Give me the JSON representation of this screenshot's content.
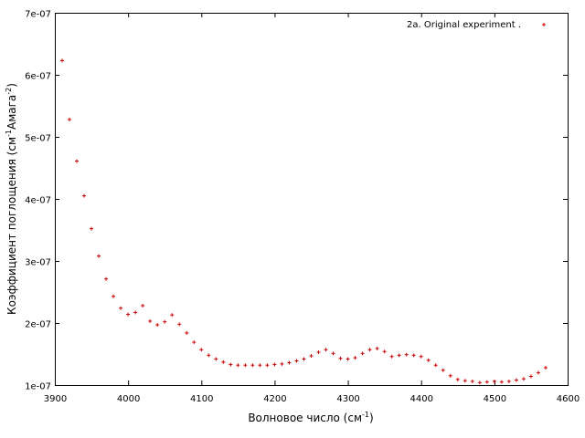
{
  "chart_data": {
    "type": "scatter",
    "title": "",
    "xlabel": "Волновое число (см",
    "xlabel_sup": "-1",
    "xlabel_tail": ")",
    "ylabel": "Коэффициент поглощения (см",
    "ylabel_sup1": "-1",
    "ylabel_mid": "Амага",
    "ylabel_sup2": "-2",
    "ylabel_tail": ")",
    "xlim": [
      3900,
      4600
    ],
    "ylim": [
      1e-07,
      7e-07
    ],
    "x_ticks": [
      "3900",
      "4000",
      "4100",
      "4200",
      "4300",
      "4400",
      "4500",
      "4600"
    ],
    "y_ticks": [
      "1e-07",
      "2e-07",
      "3e-07",
      "4e-07",
      "5e-07",
      "6e-07",
      "7e-07"
    ],
    "legend_position": "top-right",
    "grid": false,
    "series": [
      {
        "name": "2a. Original experiment .",
        "color": "#cc0000",
        "marker": "plus",
        "points": [
          [
            3910,
            6.23e-07
          ],
          [
            3920,
            5.28e-07
          ],
          [
            3930,
            4.61e-07
          ],
          [
            3940,
            4.05e-07
          ],
          [
            3950,
            3.52e-07
          ],
          [
            3960,
            3.08e-07
          ],
          [
            3970,
            2.71e-07
          ],
          [
            3980,
            2.43e-07
          ],
          [
            3990,
            2.24e-07
          ],
          [
            4000,
            2.14e-07
          ],
          [
            4010,
            2.17e-07
          ],
          [
            4020,
            2.28e-07
          ],
          [
            4030,
            2.03e-07
          ],
          [
            4040,
            1.97e-07
          ],
          [
            4050,
            2.02e-07
          ],
          [
            4060,
            2.13e-07
          ],
          [
            4070,
            1.98e-07
          ],
          [
            4080,
            1.84e-07
          ],
          [
            4090,
            1.69e-07
          ],
          [
            4100,
            1.57e-07
          ],
          [
            4110,
            1.48e-07
          ],
          [
            4120,
            1.42e-07
          ],
          [
            4130,
            1.37e-07
          ],
          [
            4140,
            1.33e-07
          ],
          [
            4150,
            1.32e-07
          ],
          [
            4160,
            1.32e-07
          ],
          [
            4170,
            1.32e-07
          ],
          [
            4180,
            1.32e-07
          ],
          [
            4190,
            1.32e-07
          ],
          [
            4200,
            1.33e-07
          ],
          [
            4210,
            1.34e-07
          ],
          [
            4220,
            1.36e-07
          ],
          [
            4230,
            1.39e-07
          ],
          [
            4240,
            1.42e-07
          ],
          [
            4250,
            1.47e-07
          ],
          [
            4260,
            1.53e-07
          ],
          [
            4270,
            1.57e-07
          ],
          [
            4280,
            1.51e-07
          ],
          [
            4290,
            1.43e-07
          ],
          [
            4300,
            1.42e-07
          ],
          [
            4310,
            1.44e-07
          ],
          [
            4320,
            1.51e-07
          ],
          [
            4330,
            1.57e-07
          ],
          [
            4340,
            1.59e-07
          ],
          [
            4350,
            1.54e-07
          ],
          [
            4360,
            1.46e-07
          ],
          [
            4370,
            1.48e-07
          ],
          [
            4380,
            1.49e-07
          ],
          [
            4390,
            1.48e-07
          ],
          [
            4400,
            1.46e-07
          ],
          [
            4410,
            1.4e-07
          ],
          [
            4420,
            1.32e-07
          ],
          [
            4430,
            1.24e-07
          ],
          [
            4440,
            1.15e-07
          ],
          [
            4450,
            1.09e-07
          ],
          [
            4460,
            1.07e-07
          ],
          [
            4470,
            1.06e-07
          ],
          [
            4480,
            1.04e-07
          ],
          [
            4490,
            1.05e-07
          ],
          [
            4500,
            1.06e-07
          ],
          [
            4510,
            1.05e-07
          ],
          [
            4520,
            1.06e-07
          ],
          [
            4530,
            1.08e-07
          ],
          [
            4540,
            1.1e-07
          ],
          [
            4550,
            1.14e-07
          ],
          [
            4560,
            1.2e-07
          ],
          [
            4570,
            1.28e-07
          ]
        ]
      }
    ]
  }
}
